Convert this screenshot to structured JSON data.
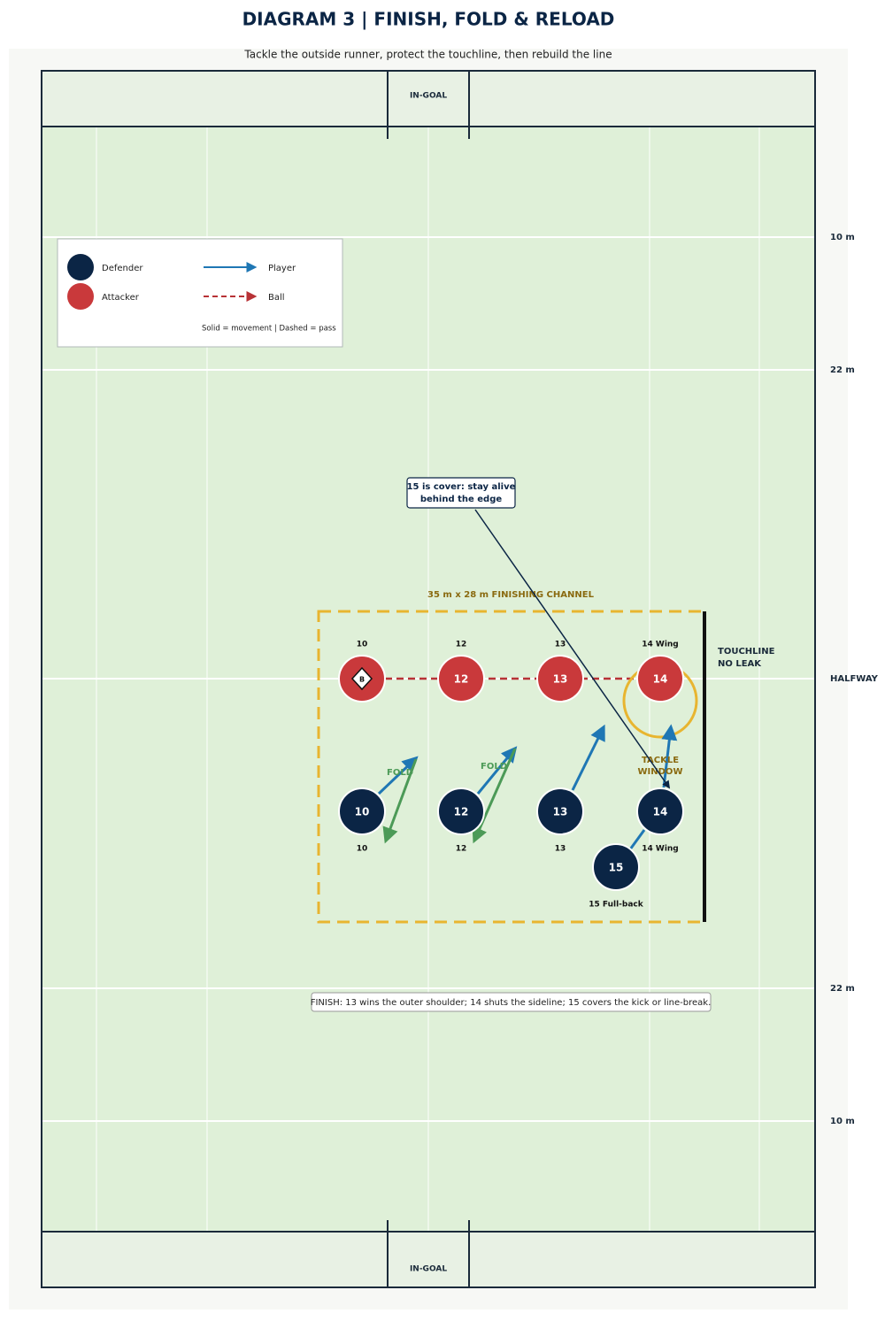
{
  "header": {
    "title": "DIAGRAM 3 | FINISH, FOLD & RELOAD",
    "subtitle": "Tackle the outside runner, protect the touchline, then rebuild the line"
  },
  "field": {
    "in_goal_top": "IN-GOAL",
    "in_goal_bottom": "IN-GOAL",
    "lines": [
      "10 m",
      "22 m",
      "HALFWAY",
      "22 m",
      "10 m"
    ]
  },
  "legend": {
    "defender": "Defender",
    "attacker": "Attacker",
    "player": "Player",
    "ball": "Ball",
    "note": "Solid = movement | Dashed = pass"
  },
  "annotation": {
    "lines": [
      "15 is cover: stay alive",
      "behind the edge"
    ]
  },
  "channel": {
    "label": "35 m x 28 m FINISHING CHANNEL"
  },
  "touchline": {
    "lines": [
      "TOUCHLINE",
      "NO LEAK"
    ]
  },
  "tackle_window": {
    "lines": [
      "TACKLE",
      "WINDOW"
    ]
  },
  "attackers": [
    {
      "label": "10",
      "badge": "B"
    },
    {
      "label": "12",
      "number": "12"
    },
    {
      "label": "13",
      "number": "13"
    },
    {
      "label": "14 Wing",
      "number": "14"
    }
  ],
  "defenders": [
    {
      "number": "10",
      "label": "10"
    },
    {
      "number": "12",
      "label": "12"
    },
    {
      "number": "13",
      "label": "13"
    },
    {
      "number": "14",
      "label": "14 Wing"
    },
    {
      "number": "15",
      "label": "15 Full-back"
    }
  ],
  "fold_labels": [
    "FOLD",
    "FOLD"
  ],
  "finish_note": "FINISH: 13 wins the outer shoulder; 14 shuts the sideline; 15 covers the kick or line-break."
}
